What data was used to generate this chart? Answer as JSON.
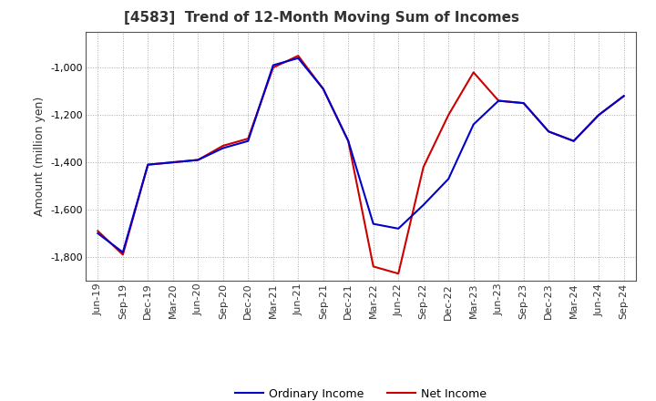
{
  "title": "[4583]  Trend of 12-Month Moving Sum of Incomes",
  "ylabel": "Amount (million yen)",
  "background_color": "#ffffff",
  "plot_bg_color": "#ffffff",
  "grid_color": "#aaaaaa",
  "x_labels": [
    "Jun-19",
    "Sep-19",
    "Dec-19",
    "Mar-20",
    "Jun-20",
    "Sep-20",
    "Dec-20",
    "Mar-21",
    "Jun-21",
    "Sep-21",
    "Dec-21",
    "Mar-22",
    "Jun-22",
    "Sep-22",
    "Dec-22",
    "Mar-23",
    "Jun-23",
    "Sep-23",
    "Dec-23",
    "Mar-24",
    "Jun-24",
    "Sep-24"
  ],
  "ordinary_income": [
    -1700,
    -1780,
    -1410,
    -1400,
    -1390,
    -1340,
    -1310,
    -990,
    -960,
    -1090,
    -1310,
    -1660,
    -1680,
    -1580,
    -1470,
    -1240,
    -1140,
    -1150,
    -1270,
    -1310,
    -1200,
    -1120
  ],
  "net_income": [
    -1690,
    -1790,
    -1410,
    -1400,
    -1390,
    -1330,
    -1300,
    -1000,
    -950,
    -1090,
    -1310,
    -1840,
    -1870,
    -1420,
    -1200,
    -1020,
    -1140,
    -1150,
    -1270,
    -1310,
    -1200,
    -1120
  ],
  "ordinary_color": "#0000cc",
  "net_color": "#cc0000",
  "ylim_min": -1900,
  "ylim_max": -850,
  "yticks": [
    -1800,
    -1600,
    -1400,
    -1200,
    -1000
  ],
  "line_width": 1.5,
  "title_fontsize": 11,
  "label_fontsize": 9,
  "tick_fontsize": 8,
  "legend_fontsize": 9
}
